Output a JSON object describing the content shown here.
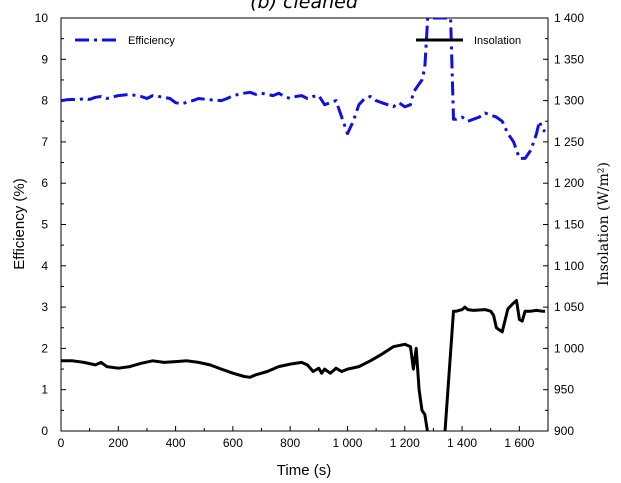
{
  "chart_data": {
    "type": "line",
    "title": "(b) cleaned",
    "xlabel": "Time (s)",
    "ylabel_left": "Efficiency (%)",
    "ylabel_right": "Insolation (W/m²)",
    "xlim": [
      0,
      1700
    ],
    "ylim_left": [
      0,
      10
    ],
    "ylim_right": [
      900,
      1400
    ],
    "x_ticks": [
      0,
      200,
      400,
      600,
      800,
      1000,
      1200,
      1400,
      1600
    ],
    "x_tick_labels": [
      "0",
      "200",
      "400",
      "600",
      "800",
      "1 000",
      "1 200",
      "1 400",
      "1 600"
    ],
    "y_left_ticks": [
      0,
      1,
      2,
      3,
      4,
      5,
      6,
      7,
      8,
      9,
      10
    ],
    "y_left_tick_labels": [
      "0",
      "1",
      "2",
      "3",
      "4",
      "5",
      "6",
      "7",
      "8",
      "9",
      "10"
    ],
    "y_right_ticks": [
      900,
      950,
      1000,
      1050,
      1100,
      1150,
      1200,
      1250,
      1300,
      1350,
      1400
    ],
    "y_right_tick_labels": [
      "900",
      "950",
      "1 000",
      "1 050",
      "1 100",
      "1 150",
      "1 200",
      "1 250",
      "1 300",
      "1 350",
      "1 400"
    ],
    "grid": false,
    "legend": "top",
    "series": [
      {
        "name": "Efficiency",
        "axis": "left",
        "color": "#1010e0",
        "style": "dash-dot",
        "x": [
          0,
          20,
          40,
          60,
          80,
          100,
          120,
          140,
          160,
          200,
          240,
          280,
          300,
          320,
          360,
          380,
          400,
          420,
          440,
          460,
          480,
          520,
          560,
          580,
          600,
          620,
          640,
          660,
          680,
          700,
          720,
          740,
          760,
          780,
          800,
          820,
          840,
          860,
          880,
          900,
          920,
          940,
          960,
          980,
          1000,
          1020,
          1040,
          1060,
          1080,
          1100,
          1120,
          1140,
          1160,
          1180,
          1200,
          1220,
          1230,
          1240,
          1260,
          1270,
          1280,
          1300,
          1320,
          1340,
          1360,
          1370,
          1380,
          1400,
          1420,
          1440,
          1460,
          1480,
          1500,
          1520,
          1540,
          1560,
          1580,
          1600,
          1620,
          1640,
          1660,
          1670,
          1680,
          1690
        ],
        "y": [
          8.0,
          8.02,
          8.03,
          8.02,
          8.05,
          8.03,
          8.08,
          8.1,
          8.05,
          8.12,
          8.15,
          8.1,
          8.05,
          8.12,
          8.08,
          8.05,
          7.95,
          7.92,
          7.96,
          8.0,
          8.05,
          8.02,
          8.0,
          8.05,
          8.12,
          8.15,
          8.18,
          8.2,
          8.15,
          8.18,
          8.15,
          8.12,
          8.18,
          8.1,
          8.05,
          8.1,
          8.12,
          8.05,
          8.1,
          8.12,
          7.9,
          7.95,
          8.0,
          7.6,
          7.2,
          7.5,
          7.9,
          8.05,
          8.1,
          8.0,
          7.95,
          7.9,
          7.85,
          7.95,
          7.85,
          7.9,
          8.2,
          8.3,
          8.5,
          8.8,
          10.0,
          10.0,
          10.0,
          10.0,
          10.0,
          7.55,
          7.55,
          7.6,
          7.5,
          7.55,
          7.6,
          7.7,
          7.65,
          7.6,
          7.5,
          7.2,
          7.0,
          6.6,
          6.6,
          6.8,
          7.2,
          7.5,
          7.3,
          7.25
        ]
      },
      {
        "name": "Insolation",
        "axis": "right",
        "color": "#000000",
        "style": "solid",
        "x": [
          0,
          40,
          80,
          120,
          140,
          160,
          200,
          240,
          280,
          320,
          360,
          400,
          440,
          480,
          520,
          560,
          600,
          640,
          660,
          680,
          700,
          720,
          760,
          800,
          840,
          860,
          880,
          900,
          910,
          920,
          940,
          960,
          980,
          1000,
          1040,
          1080,
          1120,
          1160,
          1200,
          1220,
          1230,
          1240,
          1250,
          1260,
          1270,
          1280,
          1300,
          1340,
          1370,
          1380,
          1400,
          1410,
          1420,
          1440,
          1480,
          1500,
          1510,
          1520,
          1540,
          1560,
          1580,
          1590,
          1600,
          1610,
          1620,
          1640,
          1660,
          1680,
          1690
        ],
        "y": [
          985,
          985,
          983,
          980,
          983,
          978,
          976,
          978,
          982,
          985,
          983,
          984,
          985,
          983,
          980,
          975,
          970,
          966,
          965,
          968,
          970,
          972,
          978,
          981,
          983,
          980,
          972,
          976,
          970,
          975,
          970,
          976,
          972,
          975,
          978,
          985,
          993,
          1002,
          1005,
          1002,
          975,
          1000,
          950,
          925,
          920,
          898,
          898,
          898,
          1045,
          1045,
          1047,
          1050,
          1047,
          1046,
          1047,
          1045,
          1040,
          1025,
          1020,
          1048,
          1055,
          1058,
          1035,
          1033,
          1045,
          1045,
          1046,
          1045,
          1045
        ]
      }
    ]
  }
}
